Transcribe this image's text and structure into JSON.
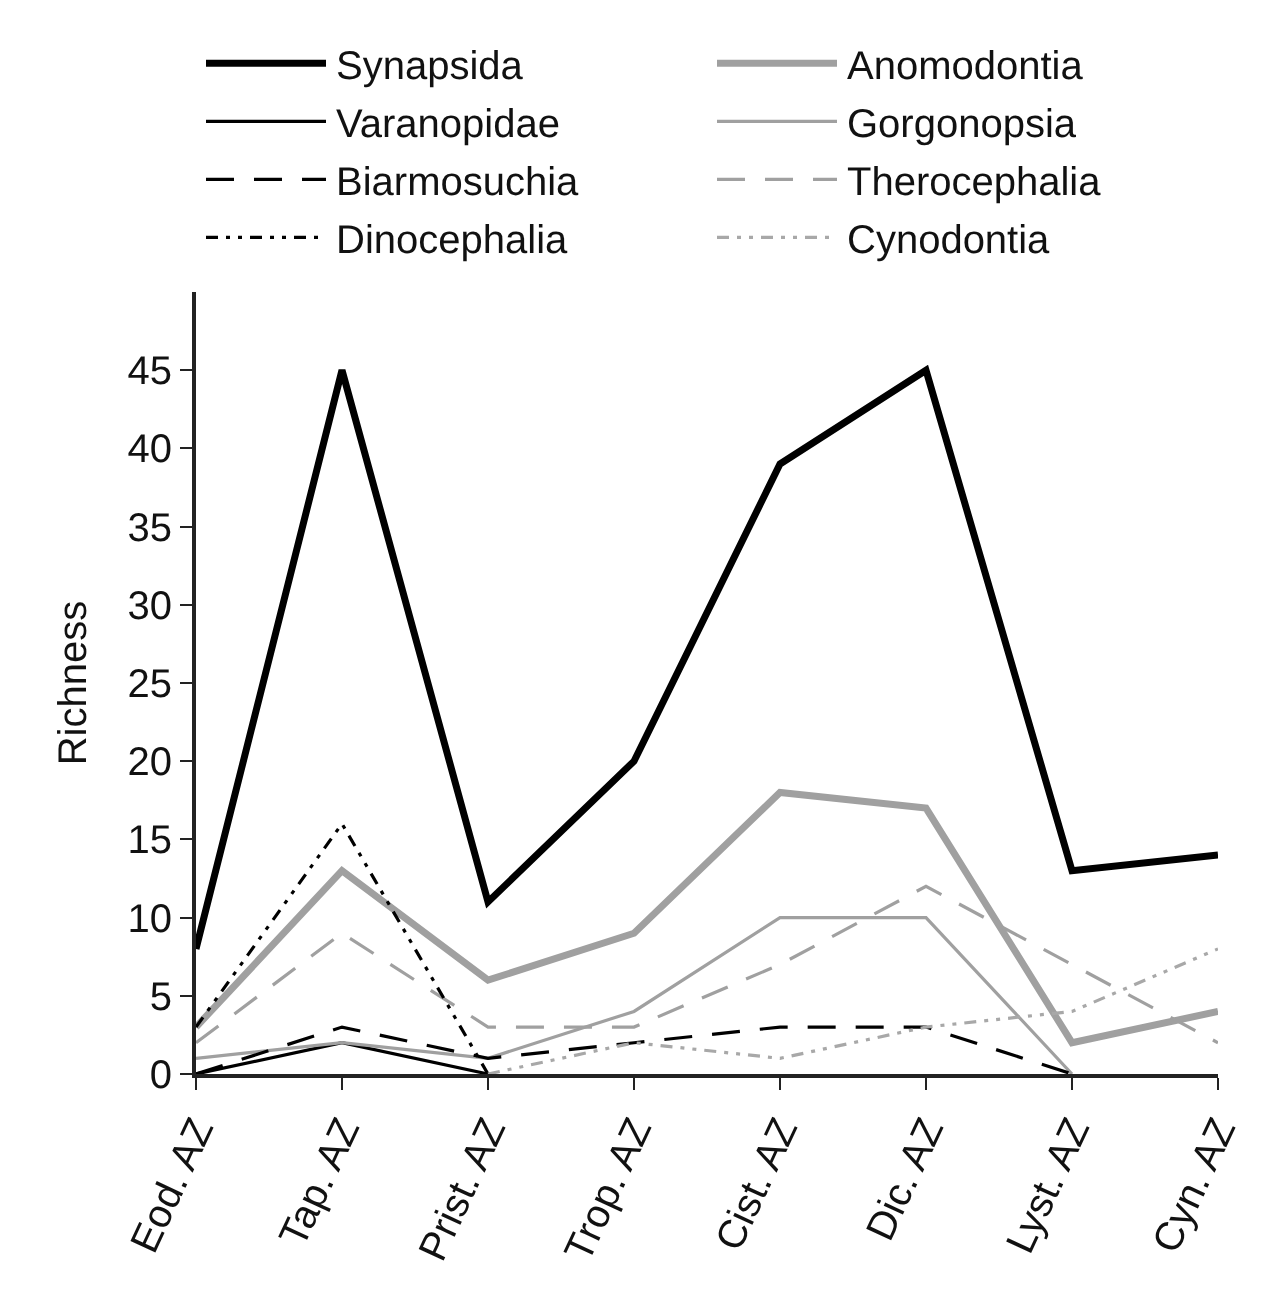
{
  "chart_data": {
    "type": "line",
    "ylabel": "Richness",
    "categories": [
      "Eod. AZ",
      "Tap. AZ",
      "Prist. AZ",
      "Trop. AZ",
      "Cist. AZ",
      "Dic. AZ",
      "Lyst. AZ",
      "Cyn. AZ"
    ],
    "ylim": [
      0,
      50
    ],
    "yticks": [
      0,
      5,
      10,
      15,
      20,
      25,
      30,
      35,
      40,
      45
    ],
    "legend": "top",
    "marker": "none",
    "series": [
      {
        "name": "Synapsida",
        "color": "#000000",
        "line_style": "solid",
        "values": [
          8,
          45,
          11,
          20,
          39,
          45,
          13,
          14
        ]
      },
      {
        "name": "Anomodontia",
        "color": "#a0a0a0",
        "line_style": "solid",
        "values": [
          3,
          13,
          6,
          9,
          18,
          17,
          2,
          4
        ]
      },
      {
        "name": "Varanopidae",
        "color": "#000000",
        "line_style": "solid",
        "values": [
          0,
          2,
          0,
          null,
          null,
          null,
          null,
          null
        ]
      },
      {
        "name": "Gorgonopsia",
        "color": "#a0a0a0",
        "line_style": "solid",
        "values": [
          1,
          2,
          1,
          4,
          10,
          10,
          0,
          null
        ]
      },
      {
        "name": "Biarmosuchia",
        "color": "#000000",
        "line_style": "dashed",
        "values": [
          0,
          3,
          1,
          2,
          3,
          3,
          0,
          null
        ]
      },
      {
        "name": "Therocephalia",
        "color": "#a0a0a0",
        "line_style": "dashed",
        "values": [
          2,
          9,
          3,
          3,
          7,
          12,
          7,
          2
        ]
      },
      {
        "name": "Dinocephalia",
        "color": "#000000",
        "line_style": "dotted",
        "values": [
          3,
          16,
          0,
          null,
          null,
          null,
          null,
          null
        ]
      },
      {
        "name": "Cynodontia",
        "color": "#a8a8a8",
        "line_style": "dotted",
        "values": [
          null,
          null,
          0,
          2,
          1,
          3,
          4,
          8
        ]
      }
    ]
  }
}
